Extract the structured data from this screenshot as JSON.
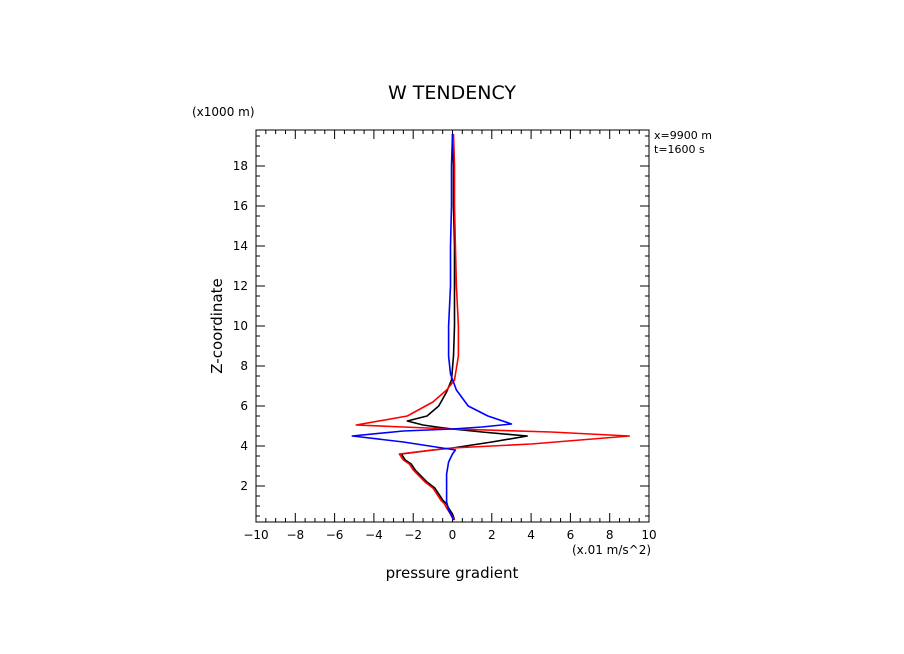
{
  "chart_data": {
    "type": "line",
    "title": "W TENDENCY",
    "xlabel": "pressure gradient",
    "ylabel": "Z-coordinate",
    "x_unit_label": "(x.01 m/s^2)",
    "y_unit_label": "(x1000 m)",
    "annotations": [
      "x=9900 m",
      "t=1600 s"
    ],
    "xlim": [
      -10,
      10
    ],
    "ylim": [
      0.2,
      19.8
    ],
    "x_ticks": [
      -10,
      -8,
      -6,
      -4,
      -2,
      0,
      2,
      4,
      6,
      8,
      10
    ],
    "x_tick_labels": [
      "−10",
      "−8",
      "−6",
      "−4",
      "−2",
      "0",
      "2",
      "4",
      "6",
      "8",
      "10"
    ],
    "y_ticks": [
      2,
      4,
      6,
      8,
      10,
      12,
      14,
      16,
      18
    ],
    "y_tick_labels": [
      "2",
      "4",
      "6",
      "8",
      "10",
      "12",
      "14",
      "16",
      "18"
    ],
    "grid": false,
    "series": [
      {
        "color": "#000000",
        "points": [
          [
            0.1,
            0.3
          ],
          [
            0.0,
            0.6
          ],
          [
            -0.2,
            0.9
          ],
          [
            -0.3,
            1.1
          ],
          [
            -0.5,
            1.3
          ],
          [
            -0.7,
            1.6
          ],
          [
            -0.9,
            1.9
          ],
          [
            -1.3,
            2.2
          ],
          [
            -1.6,
            2.5
          ],
          [
            -1.9,
            2.8
          ],
          [
            -2.1,
            3.1
          ],
          [
            -2.4,
            3.3
          ],
          [
            -2.6,
            3.6
          ],
          [
            -1.0,
            3.8
          ],
          [
            0.0,
            3.9
          ],
          [
            2.0,
            4.2
          ],
          [
            3.8,
            4.5
          ],
          [
            1.5,
            4.7
          ],
          [
            0.0,
            4.85
          ],
          [
            -0.8,
            4.95
          ],
          [
            -1.5,
            5.05
          ],
          [
            -2.3,
            5.25
          ],
          [
            -1.3,
            5.5
          ],
          [
            -0.7,
            6.0
          ],
          [
            -0.3,
            6.7
          ],
          [
            -0.05,
            7.3
          ],
          [
            0.05,
            8.5
          ],
          [
            0.1,
            10
          ],
          [
            0.1,
            12
          ],
          [
            0.1,
            14
          ],
          [
            0.05,
            16
          ],
          [
            0.05,
            18
          ],
          [
            0.0,
            19.6
          ]
        ]
      },
      {
        "color": "#ff0000",
        "points": [
          [
            0.1,
            0.3
          ],
          [
            -0.1,
            0.6
          ],
          [
            -0.3,
            0.9
          ],
          [
            -0.4,
            1.1
          ],
          [
            -0.6,
            1.3
          ],
          [
            -0.8,
            1.6
          ],
          [
            -1.0,
            1.9
          ],
          [
            -1.4,
            2.2
          ],
          [
            -1.7,
            2.5
          ],
          [
            -2.0,
            2.8
          ],
          [
            -2.2,
            3.1
          ],
          [
            -2.5,
            3.3
          ],
          [
            -2.7,
            3.6
          ],
          [
            -1.0,
            3.8
          ],
          [
            0.0,
            3.9
          ],
          [
            4.0,
            4.1
          ],
          [
            9.0,
            4.5
          ],
          [
            5.0,
            4.7
          ],
          [
            0.0,
            4.85
          ],
          [
            -2.5,
            4.95
          ],
          [
            -4.9,
            5.05
          ],
          [
            -2.3,
            5.5
          ],
          [
            -1.0,
            6.2
          ],
          [
            -0.3,
            6.8
          ],
          [
            0.1,
            7.3
          ],
          [
            0.3,
            8.5
          ],
          [
            0.3,
            10
          ],
          [
            0.2,
            12
          ],
          [
            0.15,
            14
          ],
          [
            0.1,
            16
          ],
          [
            0.1,
            18
          ],
          [
            0.05,
            19.6
          ]
        ]
      },
      {
        "color": "#0000ff",
        "points": [
          [
            0.05,
            0.3
          ],
          [
            -0.2,
            0.8
          ],
          [
            -0.3,
            1.2
          ],
          [
            -0.3,
            2.0
          ],
          [
            -0.3,
            2.6
          ],
          [
            -0.2,
            3.2
          ],
          [
            0.0,
            3.6
          ],
          [
            0.15,
            3.8
          ],
          [
            -2.5,
            4.2
          ],
          [
            -5.1,
            4.5
          ],
          [
            -2.5,
            4.75
          ],
          [
            0.0,
            4.85
          ],
          [
            1.5,
            4.95
          ],
          [
            3.0,
            5.1
          ],
          [
            1.8,
            5.5
          ],
          [
            0.8,
            6.0
          ],
          [
            0.2,
            6.8
          ],
          [
            -0.1,
            7.6
          ],
          [
            -0.2,
            8.5
          ],
          [
            -0.2,
            10
          ],
          [
            -0.1,
            12
          ],
          [
            -0.1,
            14
          ],
          [
            -0.05,
            16
          ],
          [
            -0.05,
            18
          ],
          [
            0.0,
            19.6
          ]
        ]
      }
    ]
  }
}
